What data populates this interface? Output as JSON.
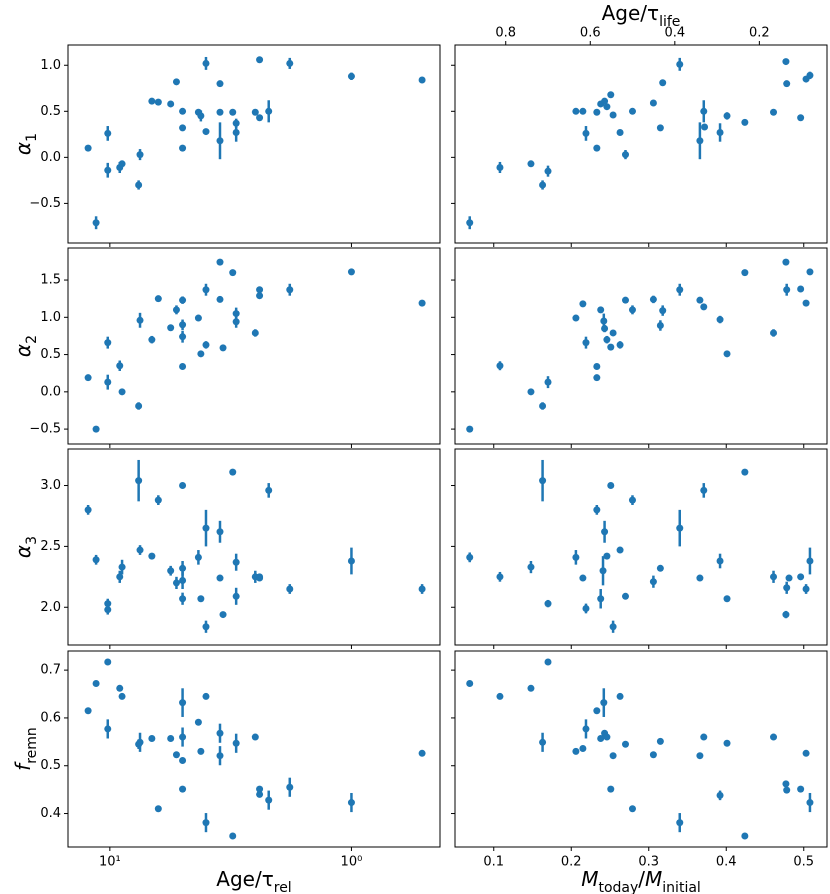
{
  "chart_data": [
    {
      "type": "scatter",
      "xscale": "log",
      "color": "#1f77b4",
      "ylabel": [
        {
          "text": "α",
          "italic": true
        },
        {
          "text": "1",
          "sub": true
        }
      ],
      "xlim": [
        14.9,
        0.43
      ],
      "xticks": [
        10,
        1
      ],
      "ylim": [
        -0.93,
        1.22
      ],
      "yticks": [
        {
          "value": -0.5,
          "label": "−0.5"
        },
        {
          "value": 0,
          "label": "0.0"
        },
        {
          "value": 0.5,
          "label": "0.5"
        },
        {
          "value": 1,
          "label": "1.0"
        }
      ],
      "x": [
        12.3,
        11.4,
        10.2,
        10.2,
        9.1,
        8.9,
        7.6,
        7.5,
        6.7,
        6.3,
        5.6,
        5.3,
        5.0,
        5.0,
        5.0,
        4.3,
        4.2,
        4.0,
        4.0,
        3.5,
        3.5,
        3.5,
        3.1,
        3.0,
        3.0,
        2.5,
        2.4,
        2.4,
        2.2,
        1.8,
        1.0,
        0.51
      ],
      "values": [
        0.1,
        -0.71,
        -0.14,
        0.26,
        -0.11,
        -0.07,
        -0.3,
        0.03,
        0.61,
        0.6,
        0.58,
        0.82,
        0.1,
        0.32,
        0.5,
        0.49,
        0.45,
        1.02,
        0.28,
        0.8,
        0.49,
        0.18,
        0.49,
        0.37,
        0.27,
        0.49,
        1.06,
        0.43,
        0.5,
        1.02,
        0.88,
        0.84
      ],
      "errors": [
        null,
        0.07,
        0.08,
        0.08,
        0.06,
        0.03,
        0.05,
        0.06,
        null,
        null,
        null,
        0.03,
        null,
        0.03,
        0.02,
        0.03,
        0.06,
        0.07,
        null,
        null,
        null,
        0.2,
        null,
        0.05,
        0.1,
        0.03,
        null,
        null,
        0.12,
        0.06,
        0.04,
        null
      ]
    },
    {
      "type": "scatter",
      "xscale": "linear",
      "color": "#1f77b4",
      "x2label": [
        {
          "text": "Age/τ"
        },
        {
          "text": "life",
          "sub": true
        }
      ],
      "x2lim": [
        0.92,
        0.04
      ],
      "x2ticks": [
        0.8,
        0.6,
        0.4,
        0.2
      ],
      "xlim": [
        0.05,
        0.53
      ],
      "xticks": [
        0.1,
        0.2,
        0.3,
        0.4,
        0.5
      ],
      "ylim": [
        -0.93,
        1.22
      ],
      "yticks": [
        -0.5,
        0,
        0.5,
        1
      ],
      "x": [
        0.069,
        0.108,
        0.148,
        0.163,
        0.17,
        0.206,
        0.219,
        0.233,
        0.215,
        0.238,
        0.233,
        0.243,
        0.246,
        0.251,
        0.254,
        0.263,
        0.27,
        0.279,
        0.306,
        0.315,
        0.318,
        0.34,
        0.366,
        0.371,
        0.372,
        0.392,
        0.401,
        0.424,
        0.461,
        0.477,
        0.478,
        0.496,
        0.503,
        0.508
      ],
      "values": [
        -0.71,
        -0.11,
        -0.07,
        -0.3,
        -0.15,
        0.5,
        0.26,
        0.1,
        0.5,
        0.58,
        0.49,
        0.61,
        0.55,
        0.68,
        0.46,
        0.27,
        0.03,
        0.5,
        0.59,
        0.32,
        0.81,
        1.01,
        0.18,
        0.5,
        0.33,
        0.27,
        0.45,
        0.38,
        0.49,
        1.04,
        0.8,
        0.43,
        0.85,
        0.89
      ],
      "errors": [
        0.07,
        0.06,
        null,
        0.05,
        0.06,
        null,
        0.08,
        null,
        null,
        null,
        null,
        null,
        null,
        null,
        null,
        null,
        0.05,
        null,
        null,
        null,
        null,
        0.07,
        0.2,
        0.12,
        null,
        0.1,
        0.04,
        0.03,
        null,
        0.03,
        null,
        null,
        0.03,
        0.04
      ]
    },
    {
      "type": "scatter",
      "xscale": "log",
      "color": "#1f77b4",
      "ylabel": [
        {
          "text": "α",
          "italic": true
        },
        {
          "text": "2",
          "sub": true
        }
      ],
      "xlim": [
        14.9,
        0.43
      ],
      "xticks": [
        10,
        1
      ],
      "ylim": [
        -0.7,
        1.93
      ],
      "yticks": [
        {
          "value": -0.5,
          "label": "−0.5"
        },
        {
          "value": 0,
          "label": "0.0"
        },
        {
          "value": 0.5,
          "label": "0.5"
        },
        {
          "value": 1,
          "label": "1.0"
        },
        {
          "value": 1.5,
          "label": "1.5"
        }
      ],
      "x": [
        12.3,
        11.4,
        10.2,
        10.2,
        9.1,
        8.9,
        7.6,
        7.5,
        6.7,
        6.3,
        5.6,
        5.3,
        5.0,
        5.0,
        5.0,
        5.0,
        4.3,
        4.2,
        4.0,
        4.0,
        3.5,
        3.5,
        3.4,
        3.1,
        3.0,
        3.0,
        2.5,
        2.4,
        2.4,
        1.8,
        1.0,
        0.51
      ],
      "values": [
        0.19,
        -0.5,
        0.66,
        0.13,
        0.35,
        0.0,
        -0.19,
        0.96,
        0.7,
        1.25,
        0.86,
        1.1,
        0.34,
        0.9,
        0.74,
        1.23,
        0.99,
        0.51,
        0.63,
        1.37,
        1.74,
        1.24,
        0.59,
        1.6,
        1.05,
        0.94,
        0.79,
        1.37,
        1.29,
        1.37,
        1.61,
        1.19
      ],
      "errors": [
        null,
        null,
        0.08,
        0.1,
        0.07,
        null,
        0.05,
        0.1,
        0.05,
        null,
        null,
        0.06,
        null,
        0.07,
        0.08,
        0.05,
        null,
        null,
        0.05,
        0.08,
        0.03,
        null,
        null,
        null,
        0.08,
        0.08,
        0.05,
        null,
        null,
        0.08,
        0.03,
        null
      ]
    },
    {
      "type": "scatter",
      "xscale": "linear",
      "color": "#1f77b4",
      "xlim": [
        0.05,
        0.53
      ],
      "xticks": [
        0.1,
        0.2,
        0.3,
        0.4,
        0.5
      ],
      "ylim": [
        -0.7,
        1.93
      ],
      "yticks": [
        -0.5,
        0,
        0.5,
        1,
        1.5
      ],
      "x": [
        0.069,
        0.108,
        0.148,
        0.163,
        0.17,
        0.206,
        0.219,
        0.233,
        0.215,
        0.238,
        0.242,
        0.243,
        0.246,
        0.251,
        0.254,
        0.233,
        0.263,
        0.27,
        0.279,
        0.306,
        0.315,
        0.318,
        0.34,
        0.366,
        0.371,
        0.392,
        0.401,
        0.424,
        0.461,
        0.477,
        0.478,
        0.496,
        0.503,
        0.508
      ],
      "values": [
        -0.5,
        0.35,
        0.0,
        -0.19,
        0.13,
        0.99,
        0.66,
        0.19,
        1.18,
        1.1,
        0.95,
        0.85,
        0.7,
        0.6,
        0.79,
        0.34,
        0.63,
        1.23,
        1.1,
        1.24,
        0.89,
        1.09,
        1.37,
        1.23,
        1.14,
        0.97,
        0.51,
        1.6,
        0.79,
        1.74,
        1.37,
        1.38,
        1.19,
        1.61
      ],
      "errors": [
        null,
        0.06,
        null,
        0.05,
        0.08,
        null,
        0.08,
        null,
        null,
        null,
        0.1,
        0.05,
        0.05,
        null,
        null,
        null,
        0.05,
        null,
        0.06,
        0.05,
        0.07,
        0.07,
        0.08,
        null,
        null,
        0.05,
        null,
        null,
        0.05,
        0.03,
        0.08,
        null,
        null,
        0.03
      ]
    },
    {
      "type": "scatter",
      "xscale": "log",
      "color": "#1f77b4",
      "ylabel": [
        {
          "text": "α",
          "italic": true
        },
        {
          "text": "3",
          "sub": true
        }
      ],
      "xlim": [
        14.9,
        0.43
      ],
      "xticks": [
        10,
        1
      ],
      "ylim": [
        1.69,
        3.3
      ],
      "yticks": [
        {
          "value": 2,
          "label": "2.0"
        },
        {
          "value": 2.5,
          "label": "2.5"
        },
        {
          "value": 3,
          "label": "3.0"
        }
      ],
      "x": [
        12.3,
        11.4,
        10.2,
        10.2,
        9.1,
        8.9,
        7.6,
        7.5,
        6.7,
        6.3,
        5.6,
        5.3,
        5.0,
        5.0,
        5.0,
        5.0,
        4.3,
        4.2,
        4.0,
        4.0,
        3.5,
        3.5,
        3.4,
        3.1,
        3.0,
        3.0,
        2.5,
        2.4,
        2.4,
        2.2,
        1.8,
        1.0,
        0.51
      ],
      "values": [
        2.8,
        2.39,
        2.03,
        1.98,
        2.25,
        2.33,
        3.04,
        2.47,
        2.42,
        2.88,
        2.3,
        2.2,
        3.0,
        2.07,
        2.32,
        2.22,
        2.41,
        2.07,
        2.65,
        1.84,
        2.24,
        2.62,
        1.94,
        3.11,
        2.37,
        2.09,
        2.25,
        2.24,
        2.25,
        2.96,
        2.15,
        2.38,
        2.15
      ],
      "errors": [
        0.04,
        0.04,
        0.04,
        0.04,
        0.05,
        0.06,
        0.17,
        0.04,
        null,
        0.04,
        0.04,
        0.05,
        null,
        0.05,
        0.06,
        0.07,
        0.06,
        null,
        0.15,
        0.05,
        null,
        0.09,
        null,
        null,
        0.07,
        0.07,
        0.05,
        null,
        null,
        0.06,
        0.04,
        0.11,
        0.04
      ]
    },
    {
      "type": "scatter",
      "xscale": "linear",
      "color": "#1f77b4",
      "xlim": [
        0.05,
        0.53
      ],
      "xticks": [
        0.1,
        0.2,
        0.3,
        0.4,
        0.5
      ],
      "ylim": [
        1.69,
        3.3
      ],
      "yticks": [
        2,
        2.5,
        3
      ],
      "x": [
        0.069,
        0.108,
        0.148,
        0.163,
        0.17,
        0.206,
        0.219,
        0.233,
        0.215,
        0.238,
        0.241,
        0.243,
        0.246,
        0.251,
        0.254,
        0.263,
        0.27,
        0.279,
        0.306,
        0.315,
        0.34,
        0.366,
        0.371,
        0.392,
        0.401,
        0.424,
        0.461,
        0.477,
        0.478,
        0.481,
        0.496,
        0.503,
        0.508
      ],
      "values": [
        2.41,
        2.25,
        2.33,
        3.04,
        2.03,
        2.41,
        1.99,
        2.8,
        2.24,
        2.07,
        2.3,
        2.62,
        2.42,
        3.0,
        1.84,
        2.47,
        2.09,
        2.88,
        2.21,
        2.32,
        2.65,
        2.24,
        2.96,
        2.38,
        2.07,
        3.11,
        2.25,
        1.94,
        2.16,
        2.24,
        2.25,
        2.15,
        2.38
      ],
      "errors": [
        0.04,
        0.04,
        0.05,
        0.17,
        0.03,
        0.06,
        0.04,
        0.04,
        null,
        0.08,
        0.12,
        0.09,
        null,
        null,
        0.05,
        null,
        null,
        0.04,
        0.05,
        null,
        0.15,
        null,
        0.06,
        0.06,
        null,
        null,
        0.05,
        0.03,
        0.05,
        null,
        null,
        0.04,
        0.11
      ]
    },
    {
      "type": "scatter",
      "xscale": "log",
      "color": "#1f77b4",
      "ylabel": [
        {
          "text": "f",
          "italic": true
        },
        {
          "text": "remn",
          "sub": true
        }
      ],
      "xlabel": [
        {
          "text": "Age/τ"
        },
        {
          "text": "rel",
          "sub": true
        }
      ],
      "xlim": [
        14.9,
        0.43
      ],
      "xticks": [
        {
          "value": 10,
          "label": "10¹"
        },
        {
          "value": 1,
          "label": "10⁰"
        }
      ],
      "ylim": [
        0.33,
        0.74
      ],
      "yticks": [
        0.4,
        0.5,
        0.6,
        0.7
      ],
      "x": [
        12.3,
        11.4,
        10.2,
        10.2,
        9.1,
        8.9,
        7.6,
        7.5,
        6.7,
        6.3,
        5.6,
        5.3,
        5.0,
        5.0,
        5.0,
        5.0,
        4.3,
        4.2,
        4.0,
        4.0,
        3.5,
        3.5,
        3.1,
        3.0,
        2.5,
        2.4,
        2.4,
        2.2,
        1.8,
        1.0,
        0.51
      ],
      "values": [
        0.615,
        0.672,
        0.717,
        0.577,
        0.662,
        0.645,
        0.545,
        0.549,
        0.557,
        0.41,
        0.557,
        0.523,
        0.632,
        0.511,
        0.56,
        0.451,
        0.591,
        0.53,
        0.645,
        0.381,
        0.568,
        0.521,
        0.353,
        0.547,
        0.56,
        0.44,
        0.451,
        0.428,
        0.455,
        0.423,
        0.526
      ],
      "errors": [
        null,
        null,
        null,
        0.02,
        null,
        null,
        0.01,
        0.02,
        null,
        null,
        null,
        null,
        0.03,
        null,
        0.02,
        null,
        null,
        null,
        null,
        0.02,
        0.02,
        0.02,
        null,
        0.02,
        null,
        null,
        null,
        0.02,
        0.02,
        0.02,
        null
      ]
    },
    {
      "type": "scatter",
      "xscale": "linear",
      "color": "#1f77b4",
      "xlabel": [
        {
          "text": "M",
          "italic": true
        },
        {
          "text": "today",
          "sub": true
        },
        {
          "text": "/"
        },
        {
          "text": "M",
          "italic": true
        },
        {
          "text": "initial",
          "sub": true
        }
      ],
      "xlim": [
        0.05,
        0.53
      ],
      "xticks": [
        0.1,
        0.2,
        0.3,
        0.4,
        0.5
      ],
      "ylim": [
        0.33,
        0.74
      ],
      "yticks": [
        0.4,
        0.5,
        0.6,
        0.7
      ],
      "x": [
        0.069,
        0.108,
        0.148,
        0.163,
        0.17,
        0.206,
        0.219,
        0.233,
        0.215,
        0.238,
        0.242,
        0.243,
        0.246,
        0.251,
        0.254,
        0.263,
        0.27,
        0.279,
        0.306,
        0.315,
        0.34,
        0.366,
        0.371,
        0.392,
        0.401,
        0.424,
        0.461,
        0.477,
        0.478,
        0.496,
        0.503,
        0.508
      ],
      "values": [
        0.672,
        0.645,
        0.662,
        0.549,
        0.717,
        0.53,
        0.577,
        0.615,
        0.536,
        0.557,
        0.632,
        0.568,
        0.56,
        0.451,
        0.521,
        0.645,
        0.545,
        0.41,
        0.523,
        0.551,
        0.381,
        0.521,
        0.56,
        0.438,
        0.547,
        0.353,
        0.56,
        0.462,
        0.449,
        0.451,
        0.526,
        0.423
      ],
      "errors": [
        null,
        null,
        null,
        0.02,
        null,
        null,
        0.02,
        null,
        null,
        null,
        0.03,
        null,
        null,
        null,
        null,
        null,
        null,
        null,
        null,
        null,
        0.02,
        null,
        null,
        0.01,
        null,
        null,
        null,
        null,
        null,
        null,
        null,
        0.02
      ]
    }
  ]
}
